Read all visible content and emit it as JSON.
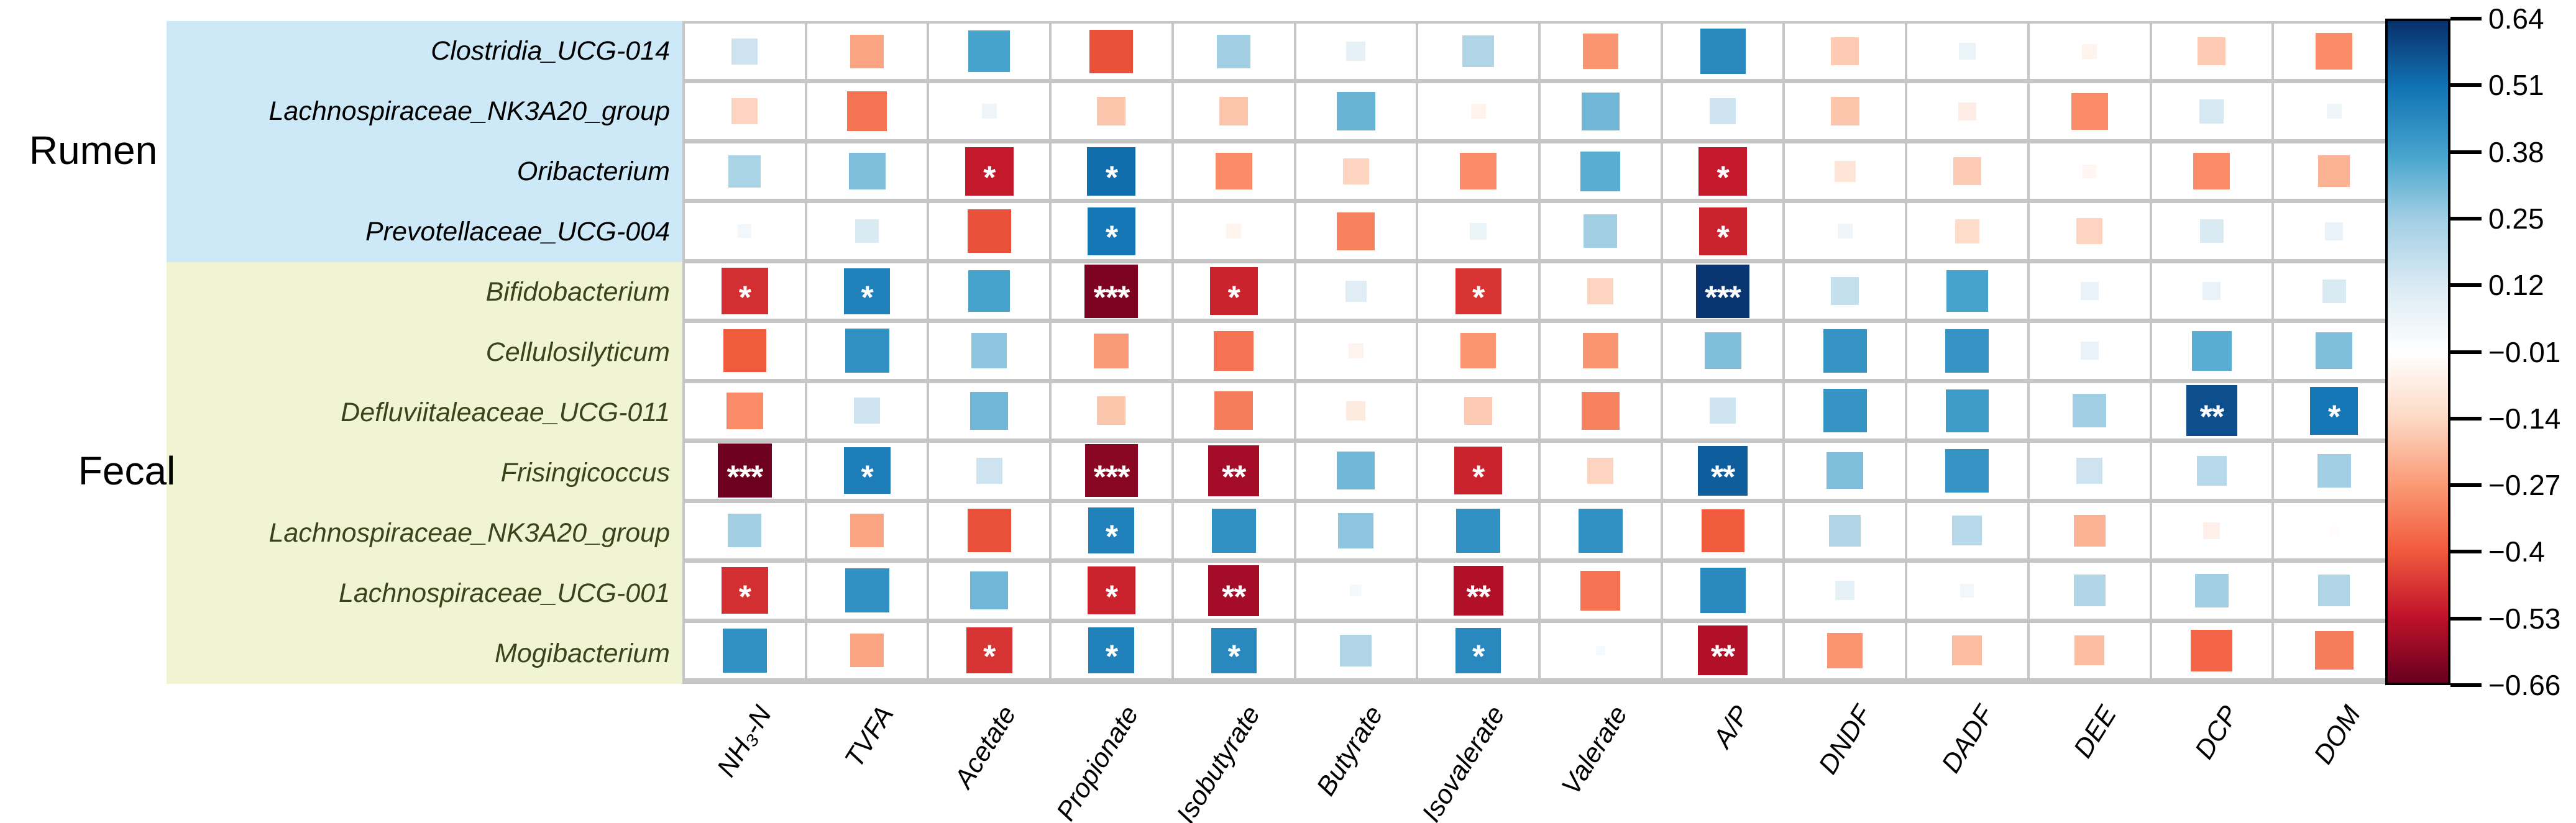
{
  "chart_data": {
    "type": "heatmap",
    "subtype": "correlation-square-plot",
    "row_groups": [
      {
        "label": "Rumen",
        "band_color": "#cde8f6",
        "text_color": "#000000",
        "row_count": 4
      },
      {
        "label": "Fecal",
        "band_color": "#f0f4d3",
        "text_color": "#3a441a",
        "row_count": 7
      }
    ],
    "rows": [
      {
        "label": "Clostridia_UCG-014",
        "group": "Rumen"
      },
      {
        "label": "Lachnospiraceae_NK3A20_group",
        "group": "Rumen"
      },
      {
        "label": "Oribacterium",
        "group": "Rumen"
      },
      {
        "label": "Prevotellaceae_UCG-004",
        "group": "Rumen"
      },
      {
        "label": "Bifidobacterium",
        "group": "Fecal"
      },
      {
        "label": "Cellulosilyticum",
        "group": "Fecal"
      },
      {
        "label": "Defluviitaleaceae_UCG-011",
        "group": "Fecal"
      },
      {
        "label": "Frisingicoccus",
        "group": "Fecal"
      },
      {
        "label": "Lachnospiraceae_NK3A20_group",
        "group": "Fecal"
      },
      {
        "label": "Lachnospiraceae_UCG-001",
        "group": "Fecal"
      },
      {
        "label": "Mogibacterium",
        "group": "Fecal"
      }
    ],
    "columns": [
      "NH₃-N",
      "TVFA",
      "Acetate",
      "Propionate",
      "Isobutyrate",
      "Butyrate",
      "Isovalerate",
      "Valerate",
      "A/P",
      "DNDF",
      "DADF",
      "DEE",
      "DCP",
      "DOM"
    ],
    "values": [
      [
        0.15,
        -0.25,
        0.38,
        -0.42,
        0.25,
        0.08,
        0.22,
        -0.28,
        0.45,
        -0.17,
        0.06,
        -0.05,
        -0.17,
        -0.3
      ],
      [
        -0.15,
        -0.35,
        0.05,
        -0.18,
        -0.18,
        0.33,
        -0.05,
        0.32,
        0.15,
        -0.18,
        -0.07,
        -0.3,
        0.13,
        0.05
      ],
      [
        0.23,
        0.3,
        -0.52,
        0.52,
        -0.3,
        -0.15,
        -0.3,
        0.35,
        -0.52,
        -0.1,
        -0.17,
        -0.04,
        -0.3,
        -0.22
      ],
      [
        0.04,
        0.12,
        -0.42,
        0.5,
        -0.05,
        -0.32,
        0.06,
        0.25,
        -0.5,
        0.05,
        -0.13,
        -0.15,
        0.12,
        0.07
      ],
      [
        -0.48,
        0.47,
        0.38,
        -0.63,
        -0.5,
        0.1,
        -0.47,
        -0.15,
        0.63,
        0.17,
        0.38,
        0.07,
        0.07,
        0.12
      ],
      [
        -0.4,
        0.43,
        0.28,
        -0.27,
        -0.35,
        -0.05,
        -0.28,
        -0.28,
        0.3,
        0.42,
        0.42,
        0.07,
        0.35,
        0.3
      ],
      [
        -0.3,
        0.15,
        0.32,
        -0.18,
        -0.33,
        -0.08,
        -0.17,
        -0.32,
        0.15,
        0.42,
        0.4,
        0.25,
        0.58,
        0.5
      ],
      [
        -0.65,
        0.48,
        0.15,
        -0.61,
        -0.57,
        0.32,
        -0.5,
        -0.15,
        0.55,
        0.3,
        0.42,
        0.15,
        0.2,
        0.25
      ],
      [
        0.25,
        -0.25,
        -0.42,
        0.47,
        0.43,
        0.28,
        0.43,
        0.43,
        -0.4,
        0.22,
        0.2,
        -0.22,
        -0.06,
        -0.02
      ],
      [
        -0.48,
        0.43,
        0.32,
        -0.5,
        -0.57,
        0.03,
        -0.55,
        -0.35,
        0.45,
        0.08,
        0.04,
        0.22,
        0.25,
        0.22
      ],
      [
        0.43,
        -0.25,
        -0.47,
        0.47,
        0.45,
        0.22,
        0.45,
        0.02,
        -0.55,
        -0.28,
        -0.2,
        -0.2,
        -0.38,
        -0.33
      ]
    ],
    "significance": [
      [
        "",
        "",
        "",
        "",
        "",
        "",
        "",
        "",
        "",
        "",
        "",
        "",
        "",
        ""
      ],
      [
        "",
        "",
        "",
        "",
        "",
        "",
        "",
        "",
        "",
        "",
        "",
        "",
        "",
        ""
      ],
      [
        "",
        "",
        "*",
        "*",
        "",
        "",
        "",
        "",
        "*",
        "",
        "",
        "",
        "",
        ""
      ],
      [
        "",
        "",
        "",
        "*",
        "",
        "",
        "",
        "",
        "*",
        "",
        "",
        "",
        "",
        ""
      ],
      [
        "*",
        "*",
        "",
        "***",
        "*",
        "",
        "*",
        "",
        "***",
        "",
        "",
        "",
        "",
        ""
      ],
      [
        "",
        "",
        "",
        "",
        "",
        "",
        "",
        "",
        "",
        "",
        "",
        "",
        "",
        ""
      ],
      [
        "",
        "",
        "",
        "",
        "",
        "",
        "",
        "",
        "",
        "",
        "",
        "",
        "**",
        "*"
      ],
      [
        "***",
        "*",
        "",
        "***",
        "**",
        "",
        "*",
        "",
        "**",
        "",
        "",
        "",
        "",
        ""
      ],
      [
        "",
        "",
        "",
        "*",
        "",
        "",
        "",
        "",
        "",
        "",
        "",
        "",
        "",
        ""
      ],
      [
        "*",
        "",
        "",
        "*",
        "**",
        "",
        "**",
        "",
        "",
        "",
        "",
        "",
        "",
        ""
      ],
      [
        "",
        "",
        "*",
        "*",
        "*",
        "",
        "*",
        "",
        "**",
        "",
        "",
        "",
        "",
        ""
      ]
    ],
    "colorbar": {
      "tick_labels": [
        "0.64",
        "0.51",
        "0.38",
        "0.25",
        "0.12",
        "−0.01",
        "−0.14",
        "−0.27",
        "−0.4",
        "−0.53",
        "−0.66"
      ],
      "vmax": 0.64,
      "vmin": -0.66
    },
    "palette": {
      "vmin": -0.66,
      "vmax": 0.64,
      "size_ref": 0.66,
      "max_side": 88,
      "anchors": [
        {
          "t": 0.0,
          "color": "#67001F"
        },
        {
          "t": 0.1,
          "color": "#C0122A"
        },
        {
          "t": 0.2,
          "color": "#F15B3D"
        },
        {
          "t": 0.3,
          "color": "#FB9A76"
        },
        {
          "t": 0.4,
          "color": "#FDD9C5"
        },
        {
          "t": 0.5,
          "color": "#FFFFFF"
        },
        {
          "t": 0.6,
          "color": "#DAEAF3"
        },
        {
          "t": 0.7,
          "color": "#A2CFE4"
        },
        {
          "t": 0.8,
          "color": "#45A3CC"
        },
        {
          "t": 0.9,
          "color": "#1173B3"
        },
        {
          "t": 1.0,
          "color": "#08306B"
        }
      ],
      "grid_line_color": "#c6c6c6",
      "cell_background": "#ffffff",
      "star_color": "#ffffff"
    }
  }
}
